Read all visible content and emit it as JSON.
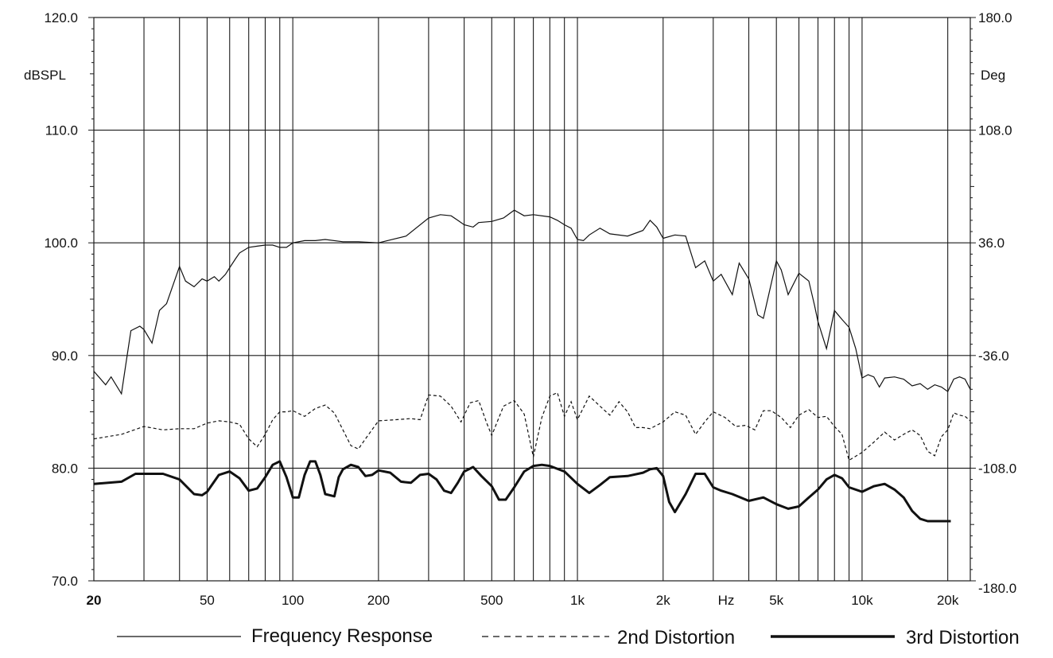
{
  "chart_data": {
    "type": "line",
    "title": "",
    "xscale": "log",
    "xlim": [
      20,
      24000
    ],
    "ylim": [
      70,
      120
    ],
    "y2lim": [
      -180,
      180
    ],
    "left_axis": {
      "unit": "dBSPL",
      "ticks": [
        {
          "value": 120,
          "label": "120.0"
        },
        {
          "value": 110,
          "label": "110.0"
        },
        {
          "value": 100,
          "label": "100.0"
        },
        {
          "value": 90,
          "label": "90.0"
        },
        {
          "value": 80,
          "label": "80.0"
        },
        {
          "value": 70,
          "label": "70.0"
        }
      ]
    },
    "right_axis": {
      "unit": "Deg",
      "ticks": [
        {
          "value": 120,
          "label": "180.0"
        },
        {
          "value": 110,
          "label": "108.0"
        },
        {
          "value": 100,
          "label": "36.0"
        },
        {
          "value": 90,
          "label": "-36.0"
        },
        {
          "value": 80,
          "label": "-108.0"
        },
        {
          "value": 70,
          "label": "-180.0"
        }
      ]
    },
    "x_unit": "Hz",
    "x_ticks": [
      {
        "value": 20,
        "label": "20"
      },
      {
        "value": 50,
        "label": "50"
      },
      {
        "value": 100,
        "label": "100"
      },
      {
        "value": 200,
        "label": "200"
      },
      {
        "value": 500,
        "label": "500"
      },
      {
        "value": 1000,
        "label": "1k"
      },
      {
        "value": 2000,
        "label": "2k"
      },
      {
        "value": 5000,
        "label": "5k"
      },
      {
        "value": 10000,
        "label": "10k"
      },
      {
        "value": 20000,
        "label": "20k"
      }
    ],
    "x_gridlines": [
      30,
      40,
      50,
      60,
      70,
      80,
      90,
      100,
      200,
      300,
      400,
      500,
      600,
      700,
      800,
      900,
      1000,
      2000,
      3000,
      4000,
      5000,
      6000,
      7000,
      8000,
      9000,
      10000,
      20000
    ],
    "y_gridlines": [
      80,
      90,
      100,
      110
    ],
    "series": [
      {
        "name": "Frequency Response",
        "style": "thin",
        "x": [
          20,
          22,
          23,
          25,
          26,
          27,
          29,
          30,
          32,
          34,
          36,
          40,
          42,
          45,
          48,
          50,
          53,
          55,
          58,
          60,
          63,
          65,
          70,
          75,
          80,
          85,
          90,
          95,
          100,
          110,
          120,
          130,
          150,
          170,
          200,
          250,
          300,
          330,
          360,
          380,
          400,
          430,
          450,
          500,
          550,
          600,
          650,
          700,
          800,
          850,
          900,
          950,
          1000,
          1050,
          1100,
          1200,
          1300,
          1500,
          1700,
          1800,
          1900,
          2000,
          2200,
          2400,
          2600,
          2800,
          3000,
          3200,
          3500,
          3700,
          4000,
          4300,
          4500,
          5000,
          5200,
          5500,
          6000,
          6500,
          6800,
          7000,
          7500,
          8000,
          8500,
          9000,
          9500,
          10000,
          10500,
          11000,
          11500,
          12000,
          13000,
          14000,
          15000,
          16000,
          17000,
          18000,
          19000,
          20000,
          21000,
          22000,
          23000,
          24000
        ],
        "values": [
          88.6,
          87.4,
          88.1,
          86.6,
          89.5,
          92.2,
          92.6,
          92.3,
          91.1,
          94.0,
          94.6,
          97.9,
          96.6,
          96.1,
          96.8,
          96.6,
          97.0,
          96.6,
          97.2,
          97.8,
          98.6,
          99.1,
          99.6,
          99.7,
          99.8,
          99.8,
          99.6,
          99.6,
          100.0,
          100.2,
          100.2,
          100.3,
          100.1,
          100.1,
          100.0,
          100.6,
          102.2,
          102.5,
          102.4,
          102.0,
          101.6,
          101.4,
          101.8,
          101.9,
          102.2,
          102.9,
          102.4,
          102.5,
          102.3,
          102.0,
          101.6,
          101.3,
          100.3,
          100.2,
          100.7,
          101.3,
          100.8,
          100.6,
          101.1,
          102.0,
          101.4,
          100.4,
          100.7,
          100.6,
          97.8,
          98.4,
          96.6,
          97.2,
          95.4,
          98.2,
          96.8,
          93.6,
          93.3,
          98.4,
          97.6,
          95.4,
          97.3,
          96.6,
          94.5,
          93.0,
          90.6,
          94.0,
          93.2,
          92.5,
          90.6,
          88.0,
          88.3,
          88.1,
          87.2,
          88.0,
          88.1,
          87.9,
          87.3,
          87.5,
          87.0,
          87.4,
          87.2,
          86.8,
          87.9,
          88.1,
          87.9,
          87.0
        ]
      },
      {
        "name": "2nd Distortion",
        "style": "dashed",
        "x": [
          20,
          25,
          30,
          35,
          40,
          45,
          50,
          55,
          60,
          65,
          70,
          75,
          80,
          85,
          90,
          95,
          100,
          110,
          120,
          130,
          140,
          150,
          160,
          170,
          180,
          200,
          230,
          260,
          280,
          300,
          330,
          360,
          390,
          420,
          450,
          480,
          500,
          550,
          600,
          650,
          700,
          750,
          800,
          850,
          900,
          950,
          1000,
          1100,
          1200,
          1300,
          1400,
          1500,
          1600,
          1700,
          1800,
          2000,
          2200,
          2400,
          2600,
          2800,
          3000,
          3300,
          3600,
          3900,
          4200,
          4500,
          4800,
          5200,
          5600,
          6000,
          6500,
          7000,
          7500,
          8000,
          8500,
          9000,
          10000,
          11000,
          12000,
          13000,
          14000,
          15000,
          16000,
          17000,
          18000,
          19000,
          20000,
          21000,
          22000,
          23000,
          24000
        ],
        "values": [
          82.6,
          83.0,
          83.7,
          83.4,
          83.5,
          83.5,
          84.0,
          84.2,
          84.1,
          83.9,
          82.6,
          81.9,
          83.0,
          84.3,
          85.0,
          85.0,
          85.1,
          84.6,
          85.3,
          85.6,
          84.9,
          83.4,
          82.0,
          81.7,
          82.6,
          84.2,
          84.3,
          84.4,
          84.3,
          86.5,
          86.4,
          85.5,
          84.1,
          85.8,
          86.0,
          84.0,
          82.9,
          85.5,
          86.0,
          84.8,
          81.0,
          84.5,
          86.4,
          86.7,
          84.6,
          85.9,
          84.3,
          86.4,
          85.5,
          84.7,
          85.9,
          85.0,
          83.6,
          83.6,
          83.5,
          84.1,
          85.0,
          84.7,
          83.0,
          84.1,
          85.0,
          84.5,
          83.7,
          83.8,
          83.4,
          85.1,
          85.1,
          84.5,
          83.6,
          84.7,
          85.2,
          84.5,
          84.6,
          83.7,
          83.0,
          80.7,
          81.4,
          82.3,
          83.2,
          82.5,
          83.0,
          83.4,
          82.9,
          81.5,
          81.1,
          82.8,
          83.4,
          84.9,
          84.7,
          84.6,
          84.2
        ]
      },
      {
        "name": "3rd Distortion",
        "style": "thick",
        "x": [
          20,
          25,
          28,
          30,
          35,
          40,
          45,
          48,
          50,
          55,
          60,
          65,
          70,
          75,
          80,
          85,
          90,
          95,
          100,
          105,
          110,
          115,
          120,
          125,
          130,
          140,
          145,
          150,
          160,
          170,
          180,
          190,
          200,
          220,
          240,
          260,
          280,
          300,
          320,
          340,
          360,
          380,
          400,
          430,
          460,
          500,
          530,
          560,
          600,
          650,
          700,
          750,
          800,
          900,
          1000,
          1100,
          1200,
          1300,
          1500,
          1700,
          1800,
          1900,
          2000,
          2100,
          2200,
          2400,
          2600,
          2800,
          3000,
          3200,
          3500,
          4000,
          4500,
          5000,
          5500,
          6000,
          6500,
          7000,
          7500,
          8000,
          8500,
          9000,
          10000,
          11000,
          12000,
          13000,
          14000,
          15000,
          16000,
          17000,
          18000,
          19000,
          20000,
          20500
        ],
        "values": [
          78.6,
          78.8,
          79.5,
          79.5,
          79.5,
          79.0,
          77.7,
          77.6,
          77.9,
          79.4,
          79.7,
          79.1,
          78.0,
          78.2,
          79.2,
          80.3,
          80.6,
          79.2,
          77.4,
          77.4,
          79.4,
          80.6,
          80.6,
          79.4,
          77.7,
          77.5,
          79.2,
          79.9,
          80.3,
          80.1,
          79.3,
          79.4,
          79.8,
          79.6,
          78.8,
          78.7,
          79.4,
          79.5,
          79.0,
          78.0,
          77.8,
          78.7,
          79.7,
          80.1,
          79.3,
          78.4,
          77.2,
          77.2,
          78.3,
          79.7,
          80.2,
          80.3,
          80.2,
          79.7,
          78.6,
          77.8,
          78.5,
          79.2,
          79.3,
          79.6,
          79.9,
          80.0,
          79.3,
          77.0,
          76.1,
          77.7,
          79.5,
          79.5,
          78.3,
          78.0,
          77.7,
          77.1,
          77.4,
          76.8,
          76.4,
          76.6,
          77.4,
          78.1,
          79.0,
          79.4,
          79.1,
          78.3,
          77.9,
          78.4,
          78.6,
          78.1,
          77.4,
          76.2,
          75.5,
          75.3,
          75.3,
          75.3,
          75.3,
          75.3
        ]
      }
    ],
    "legend_placement": "bottom-center"
  }
}
